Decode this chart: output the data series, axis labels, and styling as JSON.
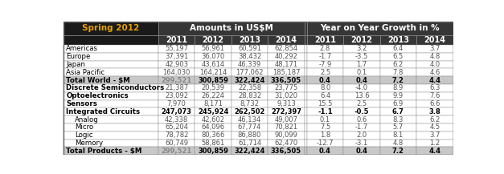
{
  "title": "Spring 2012",
  "title_color": "#E8A000",
  "header1": "Amounts in USⓈM",
  "header2": "Year on Year Growth in %",
  "col_years": [
    "2011",
    "2012",
    "2013",
    "2014"
  ],
  "rows": [
    {
      "label": "Americas",
      "indent": false,
      "bold": false,
      "shaded": false,
      "label_bold": false,
      "amounts": [
        "55,197",
        "56,961",
        "60,591",
        "62,854"
      ],
      "growth": [
        "2.8",
        "3.2",
        "6.4",
        "3.7"
      ]
    },
    {
      "label": "Europe",
      "indent": false,
      "bold": false,
      "shaded": false,
      "label_bold": false,
      "amounts": [
        "37,391",
        "36,070",
        "38,432",
        "40,292"
      ],
      "growth": [
        "-1.7",
        "-3.5",
        "6.5",
        "4.8"
      ]
    },
    {
      "label": "Japan",
      "indent": false,
      "bold": false,
      "shaded": false,
      "label_bold": false,
      "amounts": [
        "42,903",
        "43,614",
        "46,339",
        "48,171"
      ],
      "growth": [
        "-7.9",
        "1.7",
        "6.2",
        "4.0"
      ]
    },
    {
      "label": "Asia Pacific",
      "indent": false,
      "bold": false,
      "shaded": false,
      "label_bold": false,
      "amounts": [
        "164,030",
        "164,214",
        "177,062",
        "185,187"
      ],
      "growth": [
        "2.5",
        "0.1",
        "7.8",
        "4.6"
      ]
    },
    {
      "label": "Total World - $M",
      "indent": false,
      "bold": true,
      "shaded": true,
      "label_bold": true,
      "amounts": [
        "299,521",
        "300,859",
        "322,424",
        "336,505"
      ],
      "growth": [
        "0.4",
        "0.4",
        "7.2",
        "4.4"
      ]
    },
    {
      "label": "Discrete Semiconductors",
      "indent": false,
      "bold": false,
      "shaded": false,
      "label_bold": true,
      "amounts": [
        "21,387",
        "20,539",
        "22,358",
        "23,775"
      ],
      "growth": [
        "8.0",
        "-4.0",
        "8.9",
        "6.3"
      ]
    },
    {
      "label": "Optoelectronics",
      "indent": false,
      "bold": false,
      "shaded": false,
      "label_bold": true,
      "amounts": [
        "23,092",
        "26,224",
        "28,832",
        "31,020"
      ],
      "growth": [
        "6.4",
        "13.6",
        "9.9",
        "7.6"
      ]
    },
    {
      "label": "Sensors",
      "indent": false,
      "bold": false,
      "shaded": false,
      "label_bold": true,
      "amounts": [
        "7,970",
        "8,171",
        "8,732",
        "9,313"
      ],
      "growth": [
        "15.5",
        "2.5",
        "6.9",
        "6.6"
      ]
    },
    {
      "label": "Integrated Circuits",
      "indent": false,
      "bold": true,
      "shaded": false,
      "label_bold": true,
      "amounts": [
        "247,073",
        "245,924",
        "262,502",
        "272,397"
      ],
      "growth": [
        "-1.1",
        "-0.5",
        "6.7",
        "3.8"
      ]
    },
    {
      "label": "Analog",
      "indent": true,
      "bold": false,
      "shaded": false,
      "label_bold": false,
      "amounts": [
        "42,338",
        "42,602",
        "46,134",
        "49,007"
      ],
      "growth": [
        "0.1",
        "0.6",
        "8.3",
        "6.2"
      ]
    },
    {
      "label": "Micro",
      "indent": true,
      "bold": false,
      "shaded": false,
      "label_bold": false,
      "amounts": [
        "65,204",
        "64,096",
        "67,774",
        "70,821"
      ],
      "growth": [
        "7.5",
        "-1.7",
        "5.7",
        "4.5"
      ]
    },
    {
      "label": "Logic",
      "indent": true,
      "bold": false,
      "shaded": false,
      "label_bold": false,
      "amounts": [
        "78,782",
        "80,366",
        "86,880",
        "90,099"
      ],
      "growth": [
        "1.8",
        "2.0",
        "8.1",
        "3.7"
      ]
    },
    {
      "label": "Memory",
      "indent": true,
      "bold": false,
      "shaded": false,
      "label_bold": false,
      "amounts": [
        "60,749",
        "58,861",
        "61,714",
        "62,470"
      ],
      "growth": [
        "-12.7",
        "-3.1",
        "4.8",
        "1.2"
      ]
    },
    {
      "label": "Total Products - $M",
      "indent": false,
      "bold": true,
      "shaded": true,
      "label_bold": true,
      "amounts": [
        "299,521",
        "300,859",
        "322,424",
        "336,505"
      ],
      "growth": [
        "0.4",
        "0.4",
        "7.2",
        "4.4"
      ]
    }
  ],
  "header_amounts_str": "Amounts in US$M",
  "header_growth_str": "Year on Year Growth in %",
  "bg_color": "#FFFFFF",
  "title_cell_bg": "#1A1A1A",
  "header_bg": "#363636",
  "header_text": "#FFFFFF",
  "shaded_bg": "#C8C8C8",
  "row_bg": "#FFFFFF",
  "border_color": "#888888",
  "normal_data_color": "#555555",
  "bold_data_color": "#000000",
  "shaded_data_first_color": "#888888"
}
